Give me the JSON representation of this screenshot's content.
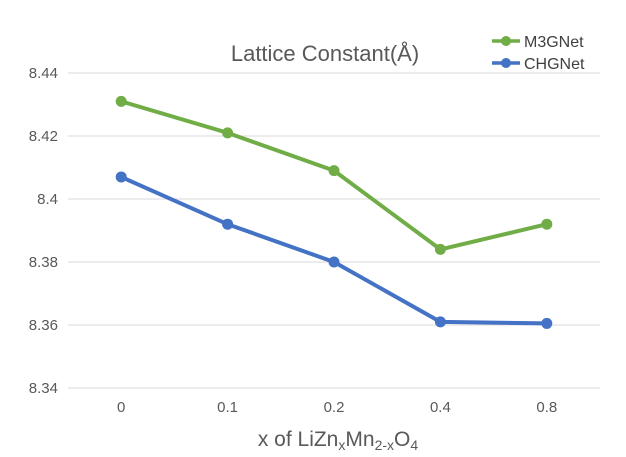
{
  "chart_data": {
    "type": "line",
    "title": "Lattice Constant(Å)",
    "xlabel": {
      "prefix": "x of LiZn",
      "sub1": "x",
      "mid": "Mn",
      "sub2": "2-x",
      "tail": "O",
      "sub3": "4"
    },
    "ylabel": "",
    "categories": [
      "0",
      "0.1",
      "0.2",
      "0.4",
      "0.8"
    ],
    "y_ticks": [
      "8.34",
      "8.36",
      "8.38",
      "8.4",
      "8.42",
      "8.44"
    ],
    "ylim": [
      8.34,
      8.44
    ],
    "grid": true,
    "legend_position": "top-right",
    "series": [
      {
        "name": "M3GNet",
        "color": "#70ad47",
        "values": [
          8.431,
          8.421,
          8.409,
          8.384,
          8.392
        ]
      },
      {
        "name": "CHGNet",
        "color": "#4472c4",
        "values": [
          8.407,
          8.392,
          8.38,
          8.361,
          8.3605
        ]
      }
    ]
  }
}
